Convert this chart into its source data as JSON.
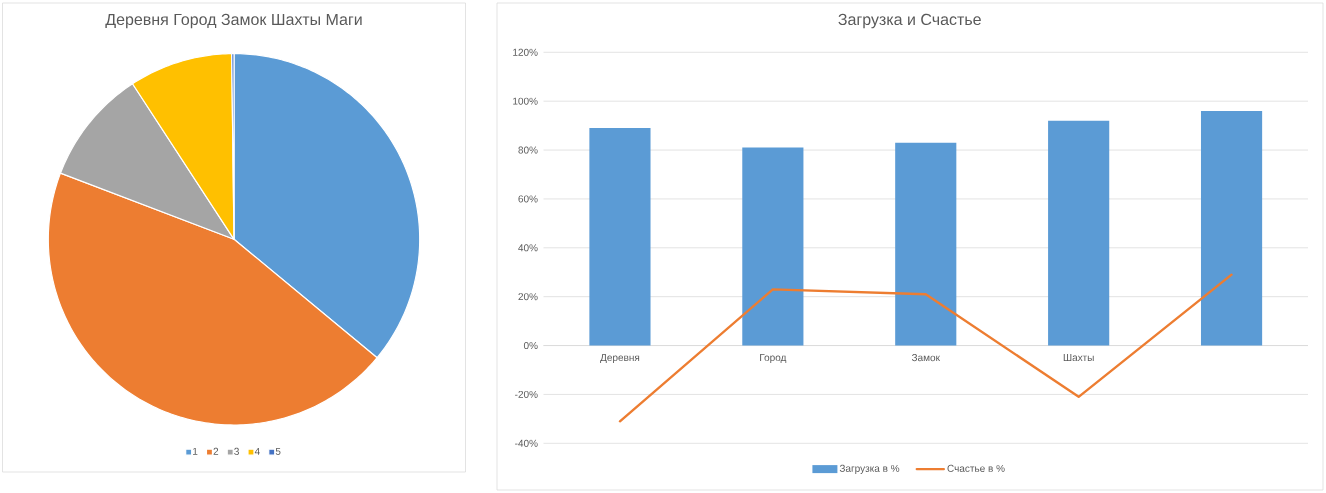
{
  "chart_data": [
    {
      "type": "pie",
      "title": "Деревня Город Замок Шахты Маги",
      "categories": [
        "1",
        "2",
        "3",
        "4",
        "5"
      ],
      "values": [
        36.0,
        44.8,
        10.0,
        9.0,
        0.2
      ],
      "colors": [
        "#5b9bd5",
        "#ed7d31",
        "#a5a5a5",
        "#ffc000",
        "#4472c4"
      ],
      "legend": "bottom"
    },
    {
      "type": "bar",
      "title": "Загрузка и Счастье",
      "categories": [
        "Деревня",
        "Город",
        "Замок",
        "Шахты",
        null
      ],
      "series": [
        {
          "name": "Загрузка в %",
          "color": "#5b9bd5",
          "values": [
            89,
            81,
            83,
            92,
            96
          ]
        },
        {
          "name": "Счастье в %",
          "type": "line",
          "color": "#ed7d31",
          "values": [
            -31,
            23,
            21,
            -21,
            29
          ]
        }
      ],
      "ylim": [
        -40,
        120
      ],
      "yticks": [
        {
          "value": -40,
          "label": "-40%"
        },
        {
          "value": -20,
          "label": "-20%"
        },
        {
          "value": 0,
          "label": "0%"
        },
        {
          "value": 20,
          "label": "20%"
        },
        {
          "value": 40,
          "label": "40%"
        },
        {
          "value": 60,
          "label": "60%"
        },
        {
          "value": 80,
          "label": "80%"
        },
        {
          "value": 100,
          "label": "100%"
        },
        {
          "value": 120,
          "label": "120%"
        }
      ],
      "grid": "y",
      "legend": "bottom"
    }
  ]
}
